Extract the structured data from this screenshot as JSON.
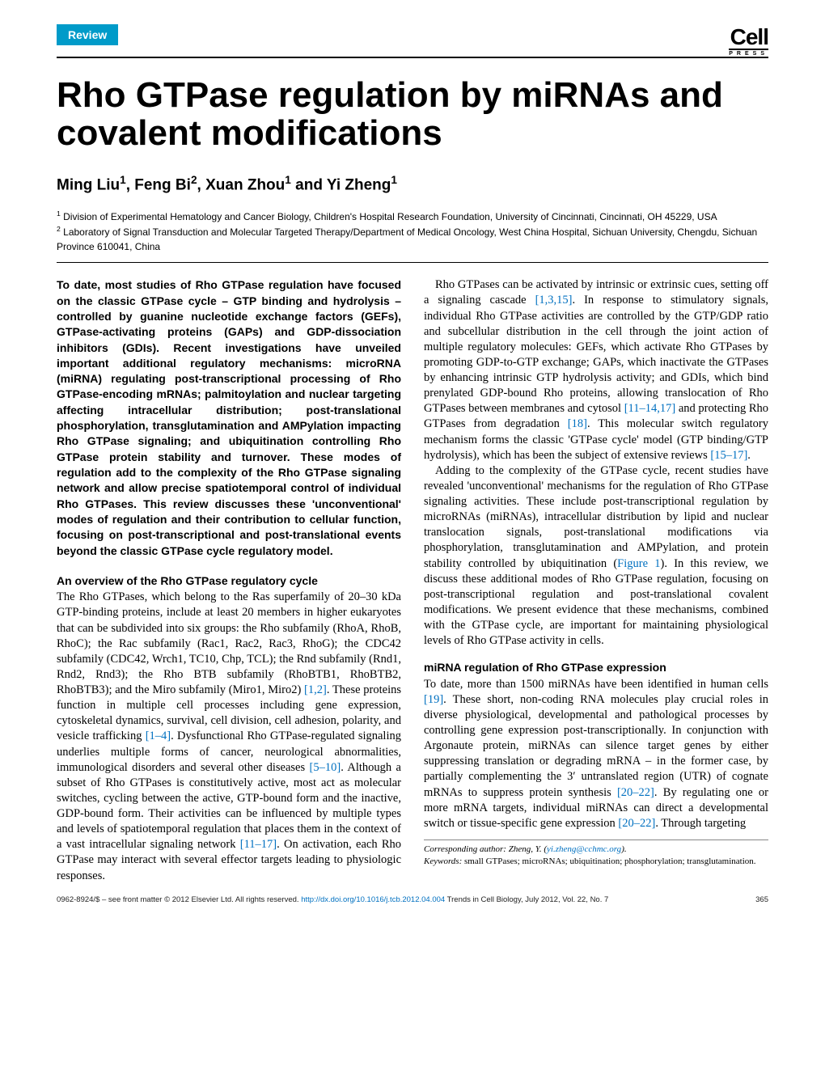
{
  "header": {
    "category": "Review",
    "logo_top": "Cell",
    "logo_bottom": "PRESS"
  },
  "title": "Rho GTPase regulation by miRNAs and covalent modifications",
  "authors_html": "Ming Liu<sup>1</sup>, Feng Bi<sup>2</sup>, Xuan Zhou<sup>1</sup> and Yi Zheng<sup>1</sup>",
  "affiliations": [
    "1 Division of Experimental Hematology and Cancer Biology, Children's Hospital Research Foundation, University of Cincinnati, Cincinnati, OH 45229, USA",
    "2 Laboratory of Signal Transduction and Molecular Targeted Therapy/Department of Medical Oncology, West China Hospital, Sichuan University, Chengdu, Sichuan Province 610041, China"
  ],
  "abstract": "To date, most studies of Rho GTPase regulation have focused on the classic GTPase cycle – GTP binding and hydrolysis – controlled by guanine nucleotide exchange factors (GEFs), GTPase-activating proteins (GAPs) and GDP-dissociation inhibitors (GDIs). Recent investigations have unveiled important additional regulatory mechanisms: microRNA (miRNA) regulating post-transcriptional processing of Rho GTPase-encoding mRNAs; palmitoylation and nuclear targeting affecting intracellular distribution; post-translational phosphorylation, transglutamination and AMPylation impacting Rho GTPase signaling; and ubiquitination controlling Rho GTPase protein stability and turnover. These modes of regulation add to the complexity of the Rho GTPase signaling network and allow precise spatiotemporal control of individual Rho GTPases. This review discusses these 'unconventional' modes of regulation and their contribution to cellular function, focusing on post-transcriptional and post-translational events beyond the classic GTPase cycle regulatory model.",
  "sections": {
    "overview": {
      "heading": "An overview of the Rho GTPase regulatory cycle",
      "p1_a": "The Rho GTPases, which belong to the Ras superfamily of 20–30 kDa GTP-binding proteins, include at least 20 members in higher eukaryotes that can be subdivided into six groups: the Rho subfamily (RhoA, RhoB, RhoC); the Rac subfamily (Rac1, Rac2, Rac3, RhoG); the CDC42 subfamily (CDC42, Wrch1, TC10, Chp, TCL); the Rnd subfamily (Rnd1, Rnd2, Rnd3); the Rho BTB subfamily (RhoBTB1, RhoBTB2, RhoBTB3); and the Miro subfamily (Miro1, Miro2) ",
      "ref1": "[1,2]",
      "p1_b": ". These proteins function in multiple cell processes including gene expression, cytoskeletal dynamics, survival, cell division, cell adhesion, polarity, and vesicle trafficking ",
      "ref2": "[1–4]",
      "p1_c": ". Dysfunctional Rho GTPase-regulated signaling underlies multiple forms of cancer, neurological abnormalities, immunological disorders and several other diseases ",
      "ref3": "[5–10]",
      "p1_d": ". Although a subset of Rho GTPases is constitutively active, most act as molecular switches, cycling between the active, GTP-bound form and the inactive, GDP-bound form. Their activities can be influenced by multiple types and levels of spatiotemporal regulation that places them in the context of a vast intracellular signaling network ",
      "ref4": "[11–17]",
      "p1_e": ". On activation, each Rho GTPase may interact with several effector targets leading to physiologic responses.",
      "p2_a": "Rho GTPases can be activated by intrinsic or extrinsic cues, setting off a signaling cascade ",
      "ref5": "[1,3,15]",
      "p2_b": ". In response to stimulatory signals, individual Rho GTPase activities are controlled by the GTP/GDP ratio and subcellular distribution in the cell through the joint action of multiple regulatory molecules: GEFs, which activate Rho GTPases by promoting GDP-to-GTP exchange; GAPs, which inactivate the GTPases by enhancing intrinsic GTP hydrolysis activity; and GDIs, which bind prenylated GDP-bound Rho proteins, allowing translocation of Rho GTPases between membranes and cytosol ",
      "ref6": "[11–14,17]",
      "p2_c": " and protecting Rho GTPases from degradation ",
      "ref7": "[18]",
      "p2_d": ". This molecular switch regulatory mechanism forms the classic 'GTPase cycle' model (GTP binding/GTP hydrolysis), which has been the subject of extensive reviews ",
      "ref8": "[15–17]",
      "p2_e": ".",
      "p3_a": "Adding to the complexity of the GTPase cycle, recent studies have revealed 'unconventional' mechanisms for the regulation of Rho GTPase signaling activities. These include post-transcriptional regulation by microRNAs (miRNAs), intracellular distribution by lipid and nuclear translocation signals, post-translational modifications via phosphorylation, transglutamination and AMPylation, and protein stability controlled by ubiquitination (",
      "fig1": "Figure 1",
      "p3_b": "). In this review, we discuss these additional modes of Rho GTPase regulation, focusing on post-transcriptional regulation and post-translational covalent modifications. We present evidence that these mechanisms, combined with the GTPase cycle, are important for maintaining physiological levels of Rho GTPase activity in cells."
    },
    "mirna": {
      "heading": "miRNA regulation of Rho GTPase expression",
      "p1_a": "To date, more than 1500 miRNAs have been identified in human cells ",
      "ref1": "[19]",
      "p1_b": ". These short, non-coding RNA molecules play crucial roles in diverse physiological, developmental and pathological processes by controlling gene expression post-transcriptionally. In conjunction with Argonaute protein, miRNAs can silence target genes by either suppressing translation or degrading mRNA – in the former case, by partially complementing the 3′ untranslated region (UTR) of cognate mRNAs to suppress protein synthesis ",
      "ref2": "[20–22]",
      "p1_c": ". By regulating one or more mRNA targets, individual miRNAs can direct a developmental switch or tissue-specific gene expression ",
      "ref3": "[20–22]",
      "p1_d": ". Through targeting"
    }
  },
  "corresponding": {
    "label": "Corresponding author:",
    "name": "Zheng, Y.",
    "email": "yi.zheng@cchmc.org",
    "kw_label": "Keywords:",
    "keywords": "small GTPases; microRNAs; ubiquitination; phosphorylation; transglutamination."
  },
  "footer": {
    "left_a": "0962-8924/$ – see front matter © 2012 Elsevier Ltd. All rights reserved. ",
    "doi": "http://dx.doi.org/10.1016/j.tcb.2012.04.004",
    "left_b": " Trends in Cell Biology, July 2012, Vol. 22, No. 7",
    "page": "365"
  },
  "colors": {
    "header_bg": "#009bc9",
    "link": "#0070c0"
  }
}
